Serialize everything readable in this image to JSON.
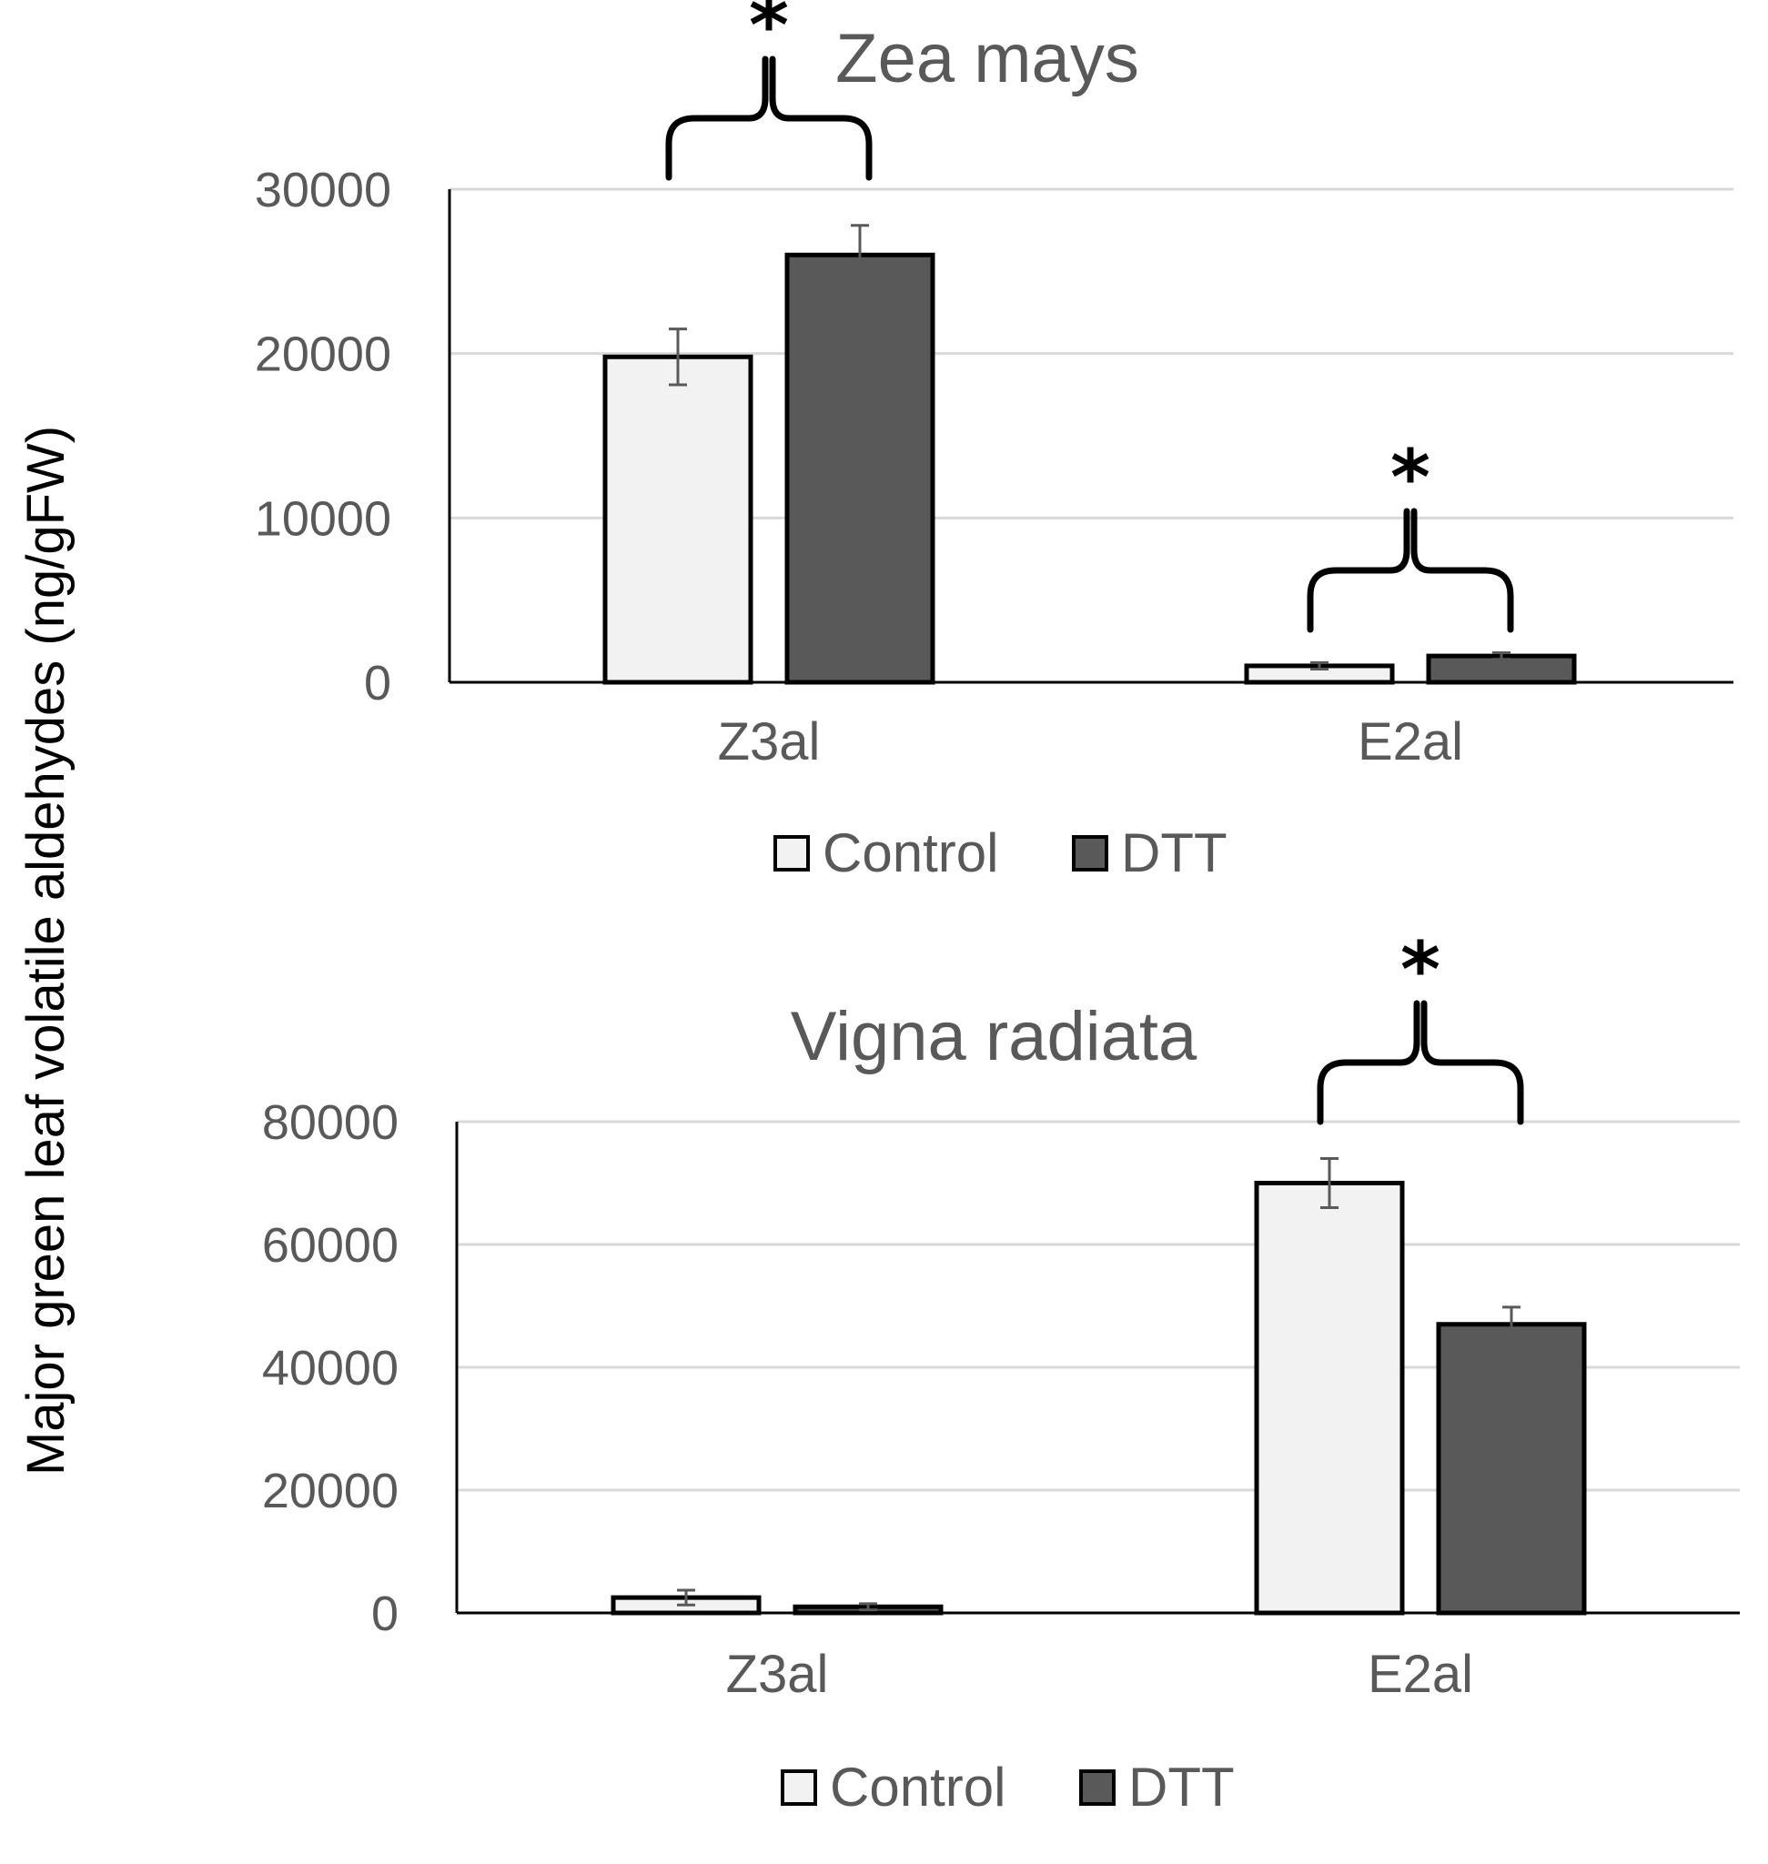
{
  "ylabel": "Major green leaf volatile aldehydes (ng/gFW)",
  "colors": {
    "control": "#f2f2f2",
    "dtt": "#595959",
    "outline": "#000000",
    "grid": "#d9d9d9",
    "text": "#595959",
    "error": "#595959"
  },
  "chart_data": [
    {
      "type": "bar",
      "title": "Zea mays",
      "categories": [
        "Z3al",
        "E2al"
      ],
      "series": [
        {
          "name": "Control",
          "values": [
            19800,
            1000
          ],
          "errors": [
            1700,
            200
          ]
        },
        {
          "name": "DTT",
          "values": [
            26000,
            1600
          ],
          "errors": [
            1800,
            200
          ]
        }
      ],
      "ylim": [
        0,
        30000
      ],
      "yticks": [
        "0",
        "10000",
        "20000",
        "30000"
      ],
      "grid": true,
      "legend": "bottom",
      "significance": [
        {
          "category": "Z3al",
          "mark": "*"
        },
        {
          "category": "E2al",
          "mark": "*"
        }
      ]
    },
    {
      "type": "bar",
      "title": "Vigna radiata",
      "categories": [
        "Z3al",
        "E2al"
      ],
      "series": [
        {
          "name": "Control",
          "values": [
            2500,
            70000
          ],
          "errors": [
            1200,
            4000
          ]
        },
        {
          "name": "DTT",
          "values": [
            1000,
            47000
          ],
          "errors": [
            500,
            2800
          ]
        }
      ],
      "ylim": [
        0,
        80000
      ],
      "yticks": [
        "0",
        "20000",
        "40000",
        "60000",
        "80000"
      ],
      "grid": true,
      "legend": "bottom",
      "significance": [
        {
          "category": "E2al",
          "mark": "*"
        }
      ]
    }
  ]
}
